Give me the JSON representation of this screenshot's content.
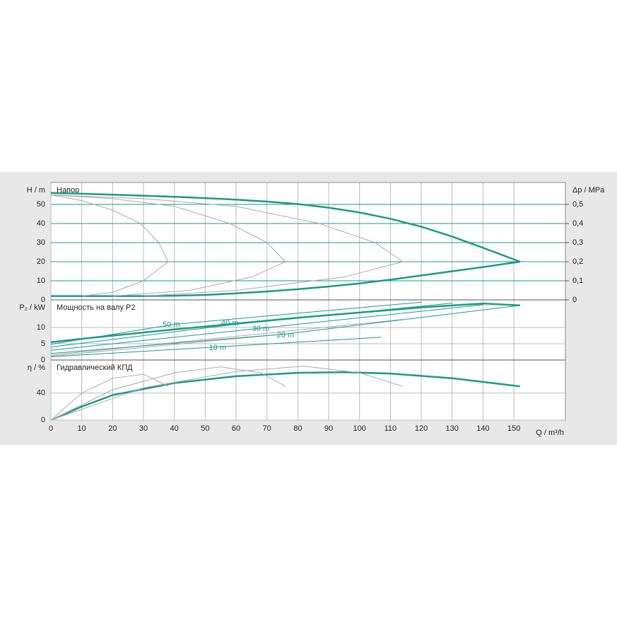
{
  "chart_data": [
    {
      "type": "line",
      "title": "Напор",
      "ylabel": "H / m",
      "y2label": "Δp / MPa",
      "ylim": [
        0,
        61.5
      ],
      "yticks": [
        0,
        10,
        20,
        30,
        40,
        50
      ],
      "grid_color": "#1a9a8a",
      "y2lim": [
        0,
        0.615
      ],
      "y2ticks": [
        {
          "value": 0,
          "label": "0"
        },
        {
          "value": 0.1,
          "label": "0,1"
        },
        {
          "value": 0.2,
          "label": "0,2"
        },
        {
          "value": 0.3,
          "label": "0,3"
        },
        {
          "value": 0.4,
          "label": "0,4"
        },
        {
          "value": 0.5,
          "label": "0,5"
        }
      ],
      "series": [
        {
          "color": "#1a9a8a",
          "linewidth": 2.5,
          "x": [
            0,
            10,
            20,
            30,
            40,
            50,
            60,
            70,
            80,
            90,
            100,
            110,
            120,
            130,
            140,
            152
          ],
          "values": [
            56,
            55.6,
            55.1,
            54.6,
            54,
            53.3,
            52.5,
            51.5,
            50.2,
            48.3,
            45.8,
            42.5,
            38.3,
            33.2,
            27.3,
            20
          ]
        },
        {
          "color": "#1a9a8a",
          "linewidth": 2.5,
          "x": [
            0,
            10,
            20,
            30,
            40,
            50,
            60,
            70,
            80,
            90,
            100,
            110,
            120,
            130,
            140,
            152
          ],
          "values": [
            2,
            2,
            2,
            2,
            2.2,
            2.6,
            3.4,
            4.4,
            5.6,
            7,
            8.6,
            10.6,
            12.8,
            15,
            17.2,
            20
          ]
        },
        {
          "color": "#aaaaaa",
          "linewidth": 1,
          "x": [
            0,
            10,
            20,
            29,
            35,
            38
          ],
          "values": [
            55,
            52,
            47,
            40,
            30,
            20
          ]
        },
        {
          "color": "#aaaaaa",
          "linewidth": 1,
          "x": [
            0,
            20,
            40,
            58,
            70,
            76
          ],
          "values": [
            55,
            53,
            49,
            40,
            30,
            20
          ]
        },
        {
          "color": "#aaaaaa",
          "linewidth": 1,
          "x": [
            0,
            30,
            60,
            87,
            105,
            114
          ],
          "values": [
            55,
            53,
            49,
            40,
            30,
            20
          ]
        },
        {
          "color": "#aaaaaa",
          "linewidth": 1,
          "x": [
            10,
            20,
            30,
            38
          ],
          "values": [
            2,
            4,
            10,
            20
          ]
        },
        {
          "color": "#aaaaaa",
          "linewidth": 1,
          "x": [
            20,
            45,
            65,
            76
          ],
          "values": [
            2,
            5,
            12,
            20
          ]
        },
        {
          "color": "#aaaaaa",
          "linewidth": 1,
          "x": [
            30,
            60,
            95,
            114
          ],
          "values": [
            2,
            5,
            12,
            20
          ]
        }
      ]
    },
    {
      "type": "line",
      "title": "Мощность на валу P2",
      "ylabel": "P₂ / kW",
      "ylim": [
        0,
        18.5
      ],
      "yticks": [
        0,
        5,
        10
      ],
      "grid_color": "#bbbbbb",
      "series": [
        {
          "color": "#1a9a8a",
          "linewidth": 2.5,
          "x": [
            0,
            20,
            40,
            60,
            80,
            100,
            120,
            140,
            152
          ],
          "values": [
            5.5,
            7.5,
            9.4,
            11.2,
            13,
            14.6,
            16.2,
            17.4,
            16.8
          ]
        },
        {
          "color": "#aaaaaa",
          "linewidth": 1,
          "x": [
            0,
            76
          ],
          "values": [
            1.2,
            8
          ]
        },
        {
          "color": "#aaaaaa",
          "linewidth": 1,
          "x": [
            0,
            114
          ],
          "values": [
            1.5,
            12.5
          ]
        },
        {
          "color": "#1a9a8a",
          "linewidth": 1,
          "x": [
            0,
            107
          ],
          "values": [
            1,
            7
          ]
        },
        {
          "color": "#1a9a8a",
          "linewidth": 1,
          "x": [
            0,
            76,
            152
          ],
          "values": [
            2,
            8,
            16.8
          ]
        },
        {
          "color": "#1a9a8a",
          "linewidth": 1,
          "x": [
            0,
            70,
            140
          ],
          "values": [
            3,
            10,
            17
          ]
        },
        {
          "color": "#1a9a8a",
          "linewidth": 1,
          "x": [
            0,
            60,
            130
          ],
          "values": [
            4,
            11,
            17.5
          ]
        },
        {
          "color": "#1a9a8a",
          "linewidth": 1,
          "x": [
            0,
            40,
            120
          ],
          "values": [
            4.8,
            11,
            17.8
          ]
        }
      ],
      "annotations": [
        {
          "text": "50 m",
          "x": 39,
          "y": 10.9
        },
        {
          "text": "40 m",
          "x": 58,
          "y": 11.3
        },
        {
          "text": "30 m",
          "x": 68,
          "y": 9.6
        },
        {
          "text": "20 m",
          "x": 76,
          "y": 7.6
        },
        {
          "text": "10 m",
          "x": 54,
          "y": 3.7
        }
      ]
    },
    {
      "type": "line",
      "title": "Гидравлический КПД",
      "ylabel": "η / %",
      "ylim": [
        0,
        89
      ],
      "yticks": [
        0,
        40
      ],
      "grid_color": "#bbbbbb",
      "xlabel": "Q / m³/h",
      "xlim": [
        0,
        166.7
      ],
      "xticks": [
        0,
        10,
        20,
        30,
        40,
        50,
        60,
        70,
        80,
        90,
        100,
        110,
        120,
        130,
        140,
        150
      ],
      "series": [
        {
          "color": "#1a9a8a",
          "linewidth": 2.5,
          "x": [
            1,
            10,
            20,
            40,
            60,
            80,
            95,
            110,
            130,
            152
          ],
          "values": [
            2,
            20,
            37,
            55,
            65,
            70,
            71,
            69,
            62,
            50
          ]
        },
        {
          "color": "#aaaaaa",
          "linewidth": 1,
          "x": [
            0,
            10,
            20,
            30,
            38
          ],
          "values": [
            0,
            40,
            62,
            68,
            50
          ]
        },
        {
          "color": "#aaaaaa",
          "linewidth": 1,
          "x": [
            0,
            20,
            40,
            55,
            68,
            76
          ],
          "values": [
            0,
            45,
            70,
            79,
            70,
            50
          ]
        },
        {
          "color": "#aaaaaa",
          "linewidth": 1,
          "x": [
            0,
            30,
            60,
            82,
            100,
            114
          ],
          "values": [
            0,
            48,
            72,
            80,
            70,
            50
          ]
        }
      ]
    }
  ]
}
